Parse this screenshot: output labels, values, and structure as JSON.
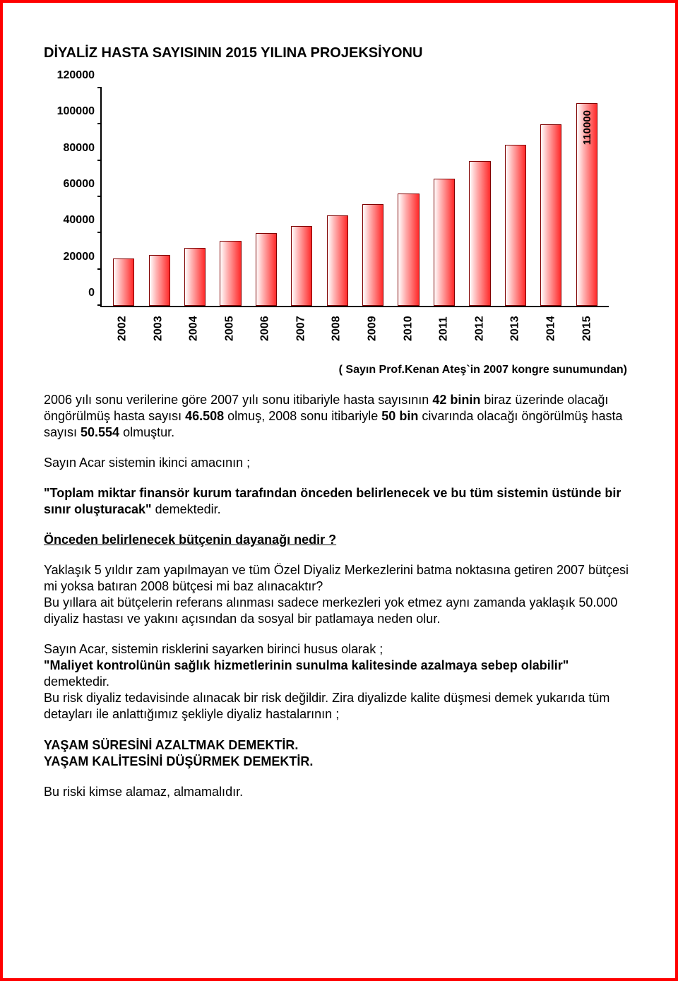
{
  "title": "DİYALİZ HASTA SAYISININ 2015 YILINA PROJEKSİYONU",
  "chart": {
    "type": "bar",
    "ylim": [
      0,
      120000
    ],
    "ytick_step": 20000,
    "ylabels": [
      "0",
      "20000",
      "40000",
      "60000",
      "80000",
      "100000",
      "120000"
    ],
    "categories": [
      "2002",
      "2003",
      "2004",
      "2005",
      "2006",
      "2007",
      "2008",
      "2009",
      "2010",
      "2011",
      "2012",
      "2013",
      "2014",
      "2015"
    ],
    "values": [
      24000,
      26000,
      30000,
      34000,
      38000,
      42000,
      48000,
      54000,
      60000,
      68000,
      78000,
      87000,
      98000,
      110000
    ],
    "bar_gradient_start": "#ffffff",
    "bar_gradient_mid": "#ffb0b0",
    "bar_gradient_end": "#ff2a2a",
    "bar_border": "#800000",
    "last_label": "110000",
    "background_color": "#ffffff",
    "title_fontsize": 18,
    "label_fontsize": 16
  },
  "caption": "( Sayın Prof.Kenan Ateş`in 2007 kongre sunumundan)",
  "p1a": "2006 yılı sonu verilerine göre 2007 yılı sonu itibariyle hasta sayısının ",
  "p1b": "42 binin",
  "p1c": " biraz üzerinde olacağı öngörülmüş hasta sayısı ",
  "p1d": "46.508",
  "p1e": " olmuş, 2008 sonu itibariyle ",
  "p1f": "50 bin",
  "p1g": " civarında olacağı öngörülmüş hasta sayısı ",
  "p1h": "50.554",
  "p1i": " olmuştur.",
  "p2": "Sayın Acar sistemin ikinci amacının ;",
  "p3a": "\"Toplam miktar finansör kurum tarafından önceden belirlenecek ve bu tüm sistemin üstünde bir sınır oluşturacak\"",
  "p3b": " demektedir.",
  "p4": "Önceden belirlenecek bütçenin dayanağı nedir ?",
  "p5": "Yaklaşık 5 yıldır zam yapılmayan ve tüm Özel Diyaliz Merkezlerini batma noktasına getiren 2007 bütçesi mi yoksa batıran 2008 bütçesi mi baz alınacaktır?\nBu yıllara ait bütçelerin referans alınması sadece merkezleri yok etmez aynı zamanda yaklaşık 50.000 diyaliz hastası ve yakını açısından da sosyal bir patlamaya neden olur.",
  "p6a": "Sayın Acar, sistemin risklerini sayarken birinci husus olarak ;",
  "p6b": "\"Maliyet kontrolünün sağlık hizmetlerinin sunulma kalitesinde azalmaya sebep olabilir\"",
  "p6c": " demektedir.",
  "p6d": "Bu risk diyaliz tedavisinde alınacak bir risk değildir. Zira diyalizde kalite düşmesi demek yukarıda tüm detayları ile anlattığımız şekliyle diyaliz hastalarının ;",
  "p7": "YAŞAM SÜRESİNİ AZALTMAK DEMEKTİR.",
  "p8": "YAŞAM KALİTESİNİ DÜŞÜRMEK DEMEKTİR.",
  "p9": "Bu riski kimse alamaz, almamalıdır."
}
